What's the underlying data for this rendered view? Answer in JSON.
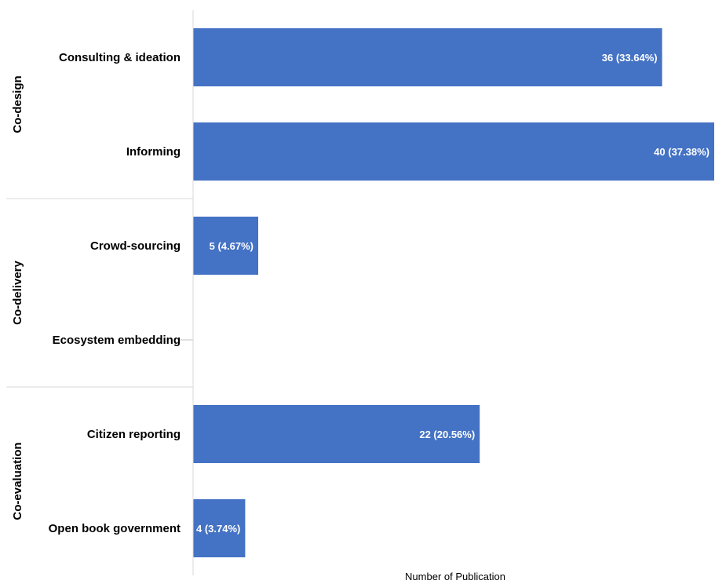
{
  "chart_data": {
    "type": "bar",
    "orientation": "horizontal",
    "xlabel": "Number of Publication",
    "ylabel": "",
    "xlim": [
      0,
      40
    ],
    "bar_color": "#4472C4",
    "grid": false,
    "legend": "none",
    "groups": [
      {
        "name": "Co-design",
        "categories": [
          "Consulting & ideation",
          "Informing"
        ]
      },
      {
        "name": "Co-delivery",
        "categories": [
          "Crowd-sourcing",
          "Ecosystem embedding"
        ]
      },
      {
        "name": "Co-evaluation",
        "categories": [
          "Citizen reporting",
          "Open book government"
        ]
      }
    ],
    "categories": [
      "Consulting & ideation",
      "Informing",
      "Crowd-sourcing",
      "Ecosystem embedding",
      "Citizen reporting",
      "Open book government"
    ],
    "values": [
      36,
      40,
      5,
      0,
      22,
      4
    ],
    "data_labels": [
      "36 (33.64%)",
      "40 (37.38%)",
      "5 (4.67%)",
      "",
      "22 (20.56%)",
      "4 (3.74%)"
    ]
  }
}
